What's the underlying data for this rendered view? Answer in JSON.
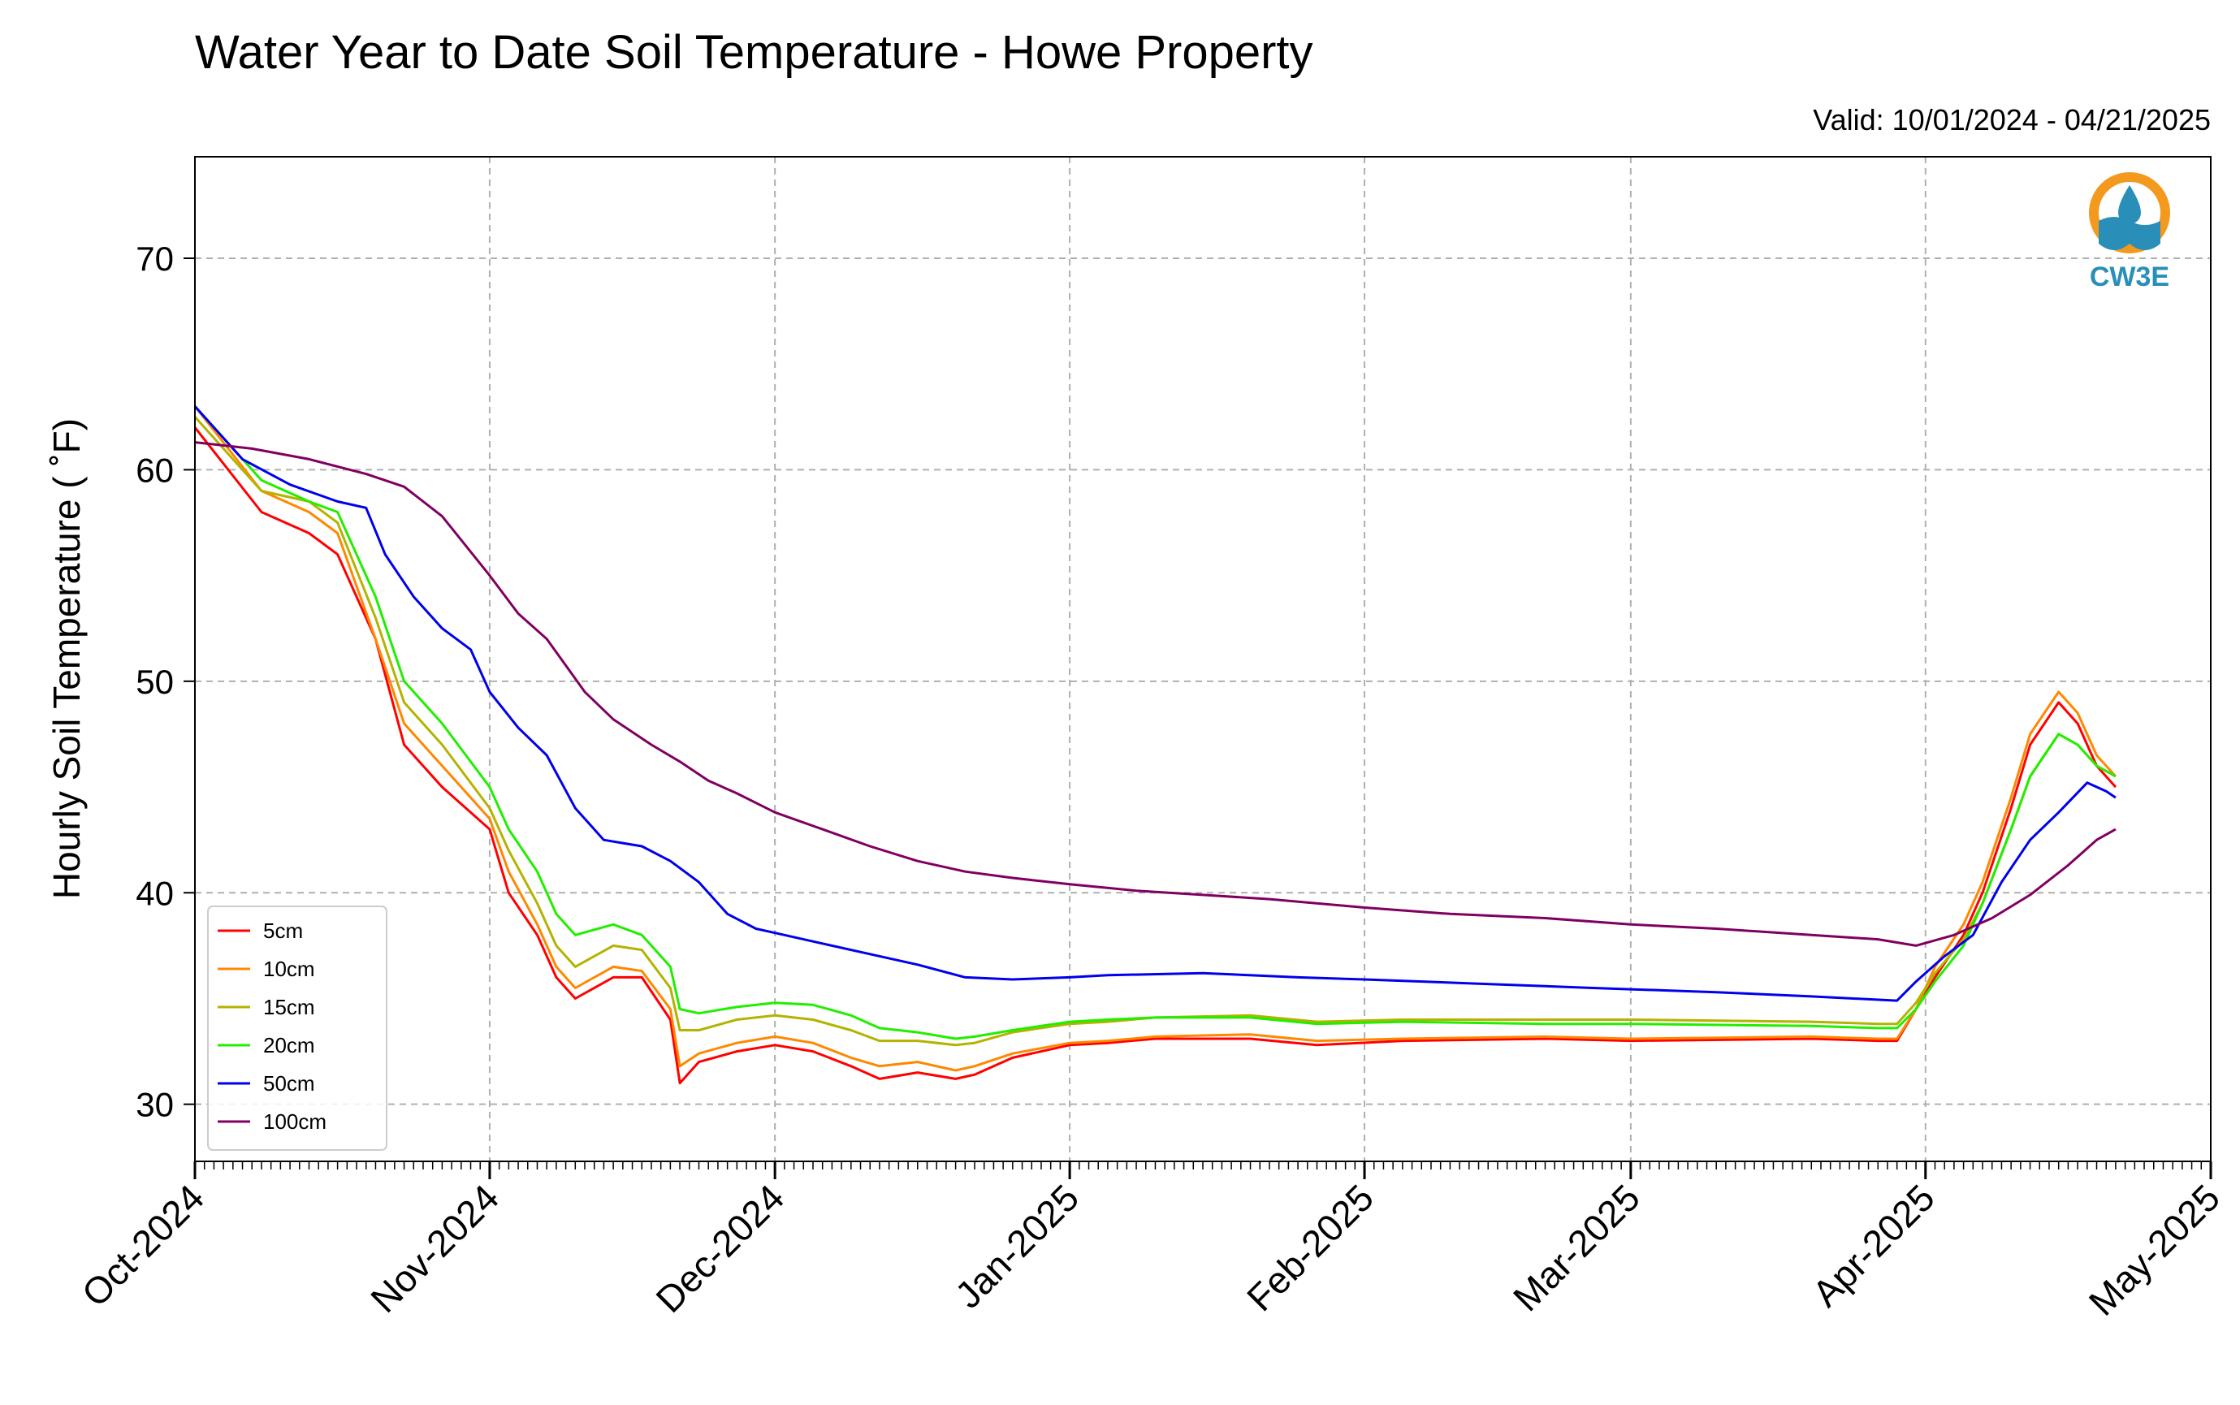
{
  "chart_data": {
    "type": "line",
    "title": "Water Year to Date Soil Temperature - Howe Property",
    "subtitle": "Valid: 10/01/2024 - 04/21/2025",
    "xlabel": "",
    "ylabel": "Hourly Soil Temperature ( ˚F)",
    "xlim": [
      "2024-10-01",
      "2025-05-01"
    ],
    "ylim": [
      27.3,
      74.8
    ],
    "yticks": [
      30,
      40,
      50,
      60,
      70
    ],
    "xticks": [
      {
        "date": "2024-10-01",
        "label": "Oct-2024"
      },
      {
        "date": "2024-11-01",
        "label": "Nov-2024"
      },
      {
        "date": "2024-12-01",
        "label": "Dec-2024"
      },
      {
        "date": "2025-01-01",
        "label": "Jan-2025"
      },
      {
        "date": "2025-02-01",
        "label": "Feb-2025"
      },
      {
        "date": "2025-03-01",
        "label": "Mar-2025"
      },
      {
        "date": "2025-04-01",
        "label": "Apr-2025"
      },
      {
        "date": "2025-05-01",
        "label": "May-2025"
      }
    ],
    "grid": true,
    "legend_position": "bottom-left",
    "series": [
      {
        "name": "5cm",
        "color": "#ff0000",
        "points": [
          [
            "2024-10-01",
            62
          ],
          [
            "2024-10-08",
            58
          ],
          [
            "2024-10-13",
            57
          ],
          [
            "2024-10-16",
            56
          ],
          [
            "2024-10-20",
            52
          ],
          [
            "2024-10-23",
            47
          ],
          [
            "2024-10-27",
            45
          ],
          [
            "2024-11-01",
            43
          ],
          [
            "2024-11-03",
            40
          ],
          [
            "2024-11-06",
            38
          ],
          [
            "2024-11-08",
            36
          ],
          [
            "2024-11-10",
            35
          ],
          [
            "2024-11-14",
            36
          ],
          [
            "2024-11-17",
            36
          ],
          [
            "2024-11-20",
            34
          ],
          [
            "2024-11-21",
            31
          ],
          [
            "2024-11-23",
            32
          ],
          [
            "2024-11-27",
            32.5
          ],
          [
            "2024-12-01",
            32.8
          ],
          [
            "2024-12-05",
            32.5
          ],
          [
            "2024-12-09",
            31.8
          ],
          [
            "2024-12-12",
            31.2
          ],
          [
            "2024-12-16",
            31.5
          ],
          [
            "2024-12-20",
            31.2
          ],
          [
            "2024-12-22",
            31.4
          ],
          [
            "2024-12-26",
            32.2
          ],
          [
            "2025-01-01",
            32.8
          ],
          [
            "2025-01-05",
            32.9
          ],
          [
            "2025-01-10",
            33.1
          ],
          [
            "2025-01-20",
            33.1
          ],
          [
            "2025-01-27",
            32.8
          ],
          [
            "2025-02-05",
            33
          ],
          [
            "2025-02-20",
            33.1
          ],
          [
            "2025-03-01",
            33
          ],
          [
            "2025-03-20",
            33.1
          ],
          [
            "2025-03-27",
            33
          ],
          [
            "2025-03-29",
            33
          ],
          [
            "2025-03-31",
            34.5
          ],
          [
            "2025-04-02",
            36
          ],
          [
            "2025-04-05",
            38
          ],
          [
            "2025-04-07",
            40
          ],
          [
            "2025-04-10",
            44
          ],
          [
            "2025-04-12",
            47
          ],
          [
            "2025-04-15",
            49
          ],
          [
            "2025-04-17",
            48
          ],
          [
            "2025-04-19",
            46
          ],
          [
            "2025-04-21",
            45
          ]
        ]
      },
      {
        "name": "10cm",
        "color": "#ff8800",
        "points": [
          [
            "2024-10-01",
            63
          ],
          [
            "2024-10-08",
            59
          ],
          [
            "2024-10-13",
            58
          ],
          [
            "2024-10-16",
            57
          ],
          [
            "2024-10-20",
            52
          ],
          [
            "2024-10-23",
            48
          ],
          [
            "2024-10-27",
            46
          ],
          [
            "2024-11-01",
            43.5
          ],
          [
            "2024-11-03",
            41
          ],
          [
            "2024-11-06",
            38.5
          ],
          [
            "2024-11-08",
            36.5
          ],
          [
            "2024-11-10",
            35.5
          ],
          [
            "2024-11-14",
            36.5
          ],
          [
            "2024-11-17",
            36.3
          ],
          [
            "2024-11-20",
            34.5
          ],
          [
            "2024-11-21",
            31.8
          ],
          [
            "2024-11-23",
            32.4
          ],
          [
            "2024-11-27",
            32.9
          ],
          [
            "2024-12-01",
            33.2
          ],
          [
            "2024-12-05",
            32.9
          ],
          [
            "2024-12-09",
            32.2
          ],
          [
            "2024-12-12",
            31.8
          ],
          [
            "2024-12-16",
            32
          ],
          [
            "2024-12-20",
            31.6
          ],
          [
            "2024-12-22",
            31.8
          ],
          [
            "2024-12-26",
            32.4
          ],
          [
            "2025-01-01",
            32.9
          ],
          [
            "2025-01-05",
            33
          ],
          [
            "2025-01-10",
            33.2
          ],
          [
            "2025-01-20",
            33.3
          ],
          [
            "2025-01-27",
            33
          ],
          [
            "2025-02-05",
            33.1
          ],
          [
            "2025-02-20",
            33.2
          ],
          [
            "2025-03-01",
            33.1
          ],
          [
            "2025-03-20",
            33.2
          ],
          [
            "2025-03-27",
            33.1
          ],
          [
            "2025-03-29",
            33.1
          ],
          [
            "2025-03-31",
            34.5
          ],
          [
            "2025-04-02",
            36.5
          ],
          [
            "2025-04-05",
            38.5
          ],
          [
            "2025-04-07",
            40.5
          ],
          [
            "2025-04-10",
            44.5
          ],
          [
            "2025-04-12",
            47.5
          ],
          [
            "2025-04-15",
            49.5
          ],
          [
            "2025-04-17",
            48.5
          ],
          [
            "2025-04-19",
            46.5
          ],
          [
            "2025-04-21",
            45.5
          ]
        ]
      },
      {
        "name": "15cm",
        "color": "#b3b300",
        "points": [
          [
            "2024-10-01",
            62.5
          ],
          [
            "2024-10-08",
            59
          ],
          [
            "2024-10-13",
            58.5
          ],
          [
            "2024-10-16",
            57.5
          ],
          [
            "2024-10-20",
            53
          ],
          [
            "2024-10-23",
            49
          ],
          [
            "2024-10-27",
            47
          ],
          [
            "2024-11-01",
            44
          ],
          [
            "2024-11-03",
            42
          ],
          [
            "2024-11-06",
            39.5
          ],
          [
            "2024-11-08",
            37.5
          ],
          [
            "2024-11-10",
            36.5
          ],
          [
            "2024-11-14",
            37.5
          ],
          [
            "2024-11-17",
            37.3
          ],
          [
            "2024-11-20",
            35.5
          ],
          [
            "2024-11-21",
            33.5
          ],
          [
            "2024-11-23",
            33.5
          ],
          [
            "2024-11-27",
            34
          ],
          [
            "2024-12-01",
            34.2
          ],
          [
            "2024-12-05",
            34
          ],
          [
            "2024-12-09",
            33.5
          ],
          [
            "2024-12-12",
            33
          ],
          [
            "2024-12-16",
            33
          ],
          [
            "2024-12-20",
            32.8
          ],
          [
            "2024-12-22",
            32.9
          ],
          [
            "2024-12-26",
            33.4
          ],
          [
            "2025-01-01",
            33.8
          ],
          [
            "2025-01-05",
            33.9
          ],
          [
            "2025-01-10",
            34.1
          ],
          [
            "2025-01-20",
            34.2
          ],
          [
            "2025-01-27",
            33.9
          ],
          [
            "2025-02-05",
            34
          ],
          [
            "2025-02-20",
            34
          ],
          [
            "2025-03-01",
            34
          ],
          [
            "2025-03-20",
            33.9
          ],
          [
            "2025-03-27",
            33.8
          ],
          [
            "2025-03-29",
            33.8
          ],
          [
            "2025-03-31",
            34.8
          ],
          [
            "2025-04-02",
            36.2
          ],
          [
            "2025-04-05",
            37.8
          ],
          [
            "2025-04-07",
            39.5
          ],
          [
            "2025-04-10",
            43
          ],
          [
            "2025-04-12",
            45.5
          ],
          [
            "2025-04-15",
            47.5
          ],
          [
            "2025-04-17",
            47
          ],
          [
            "2025-04-19",
            46
          ],
          [
            "2025-04-21",
            45.5
          ]
        ]
      },
      {
        "name": "20cm",
        "color": "#22ee00",
        "points": [
          [
            "2024-10-01",
            63
          ],
          [
            "2024-10-08",
            59.5
          ],
          [
            "2024-10-13",
            58.5
          ],
          [
            "2024-10-16",
            58
          ],
          [
            "2024-10-20",
            54
          ],
          [
            "2024-10-23",
            50
          ],
          [
            "2024-10-27",
            48
          ],
          [
            "2024-11-01",
            45
          ],
          [
            "2024-11-03",
            43
          ],
          [
            "2024-11-06",
            41
          ],
          [
            "2024-11-08",
            39
          ],
          [
            "2024-11-10",
            38
          ],
          [
            "2024-11-14",
            38.5
          ],
          [
            "2024-11-17",
            38
          ],
          [
            "2024-11-20",
            36.5
          ],
          [
            "2024-11-21",
            34.5
          ],
          [
            "2024-11-23",
            34.3
          ],
          [
            "2024-11-27",
            34.6
          ],
          [
            "2024-12-01",
            34.8
          ],
          [
            "2024-12-05",
            34.7
          ],
          [
            "2024-12-09",
            34.2
          ],
          [
            "2024-12-12",
            33.6
          ],
          [
            "2024-12-16",
            33.4
          ],
          [
            "2024-12-20",
            33.1
          ],
          [
            "2024-12-22",
            33.2
          ],
          [
            "2024-12-26",
            33.5
          ],
          [
            "2025-01-01",
            33.9
          ],
          [
            "2025-01-05",
            34
          ],
          [
            "2025-01-10",
            34.1
          ],
          [
            "2025-01-20",
            34.1
          ],
          [
            "2025-01-27",
            33.8
          ],
          [
            "2025-02-05",
            33.9
          ],
          [
            "2025-02-20",
            33.8
          ],
          [
            "2025-03-01",
            33.8
          ],
          [
            "2025-03-20",
            33.7
          ],
          [
            "2025-03-27",
            33.6
          ],
          [
            "2025-03-29",
            33.6
          ],
          [
            "2025-03-31",
            34.5
          ],
          [
            "2025-04-02",
            35.8
          ],
          [
            "2025-04-05",
            37.5
          ],
          [
            "2025-04-07",
            39.5
          ],
          [
            "2025-04-10",
            43
          ],
          [
            "2025-04-12",
            45.5
          ],
          [
            "2025-04-15",
            47.5
          ],
          [
            "2025-04-17",
            47
          ],
          [
            "2025-04-19",
            46
          ],
          [
            "2025-04-21",
            45.5
          ]
        ]
      },
      {
        "name": "50cm",
        "color": "#0000ee",
        "points": [
          [
            "2024-10-01",
            63
          ],
          [
            "2024-10-06",
            60.5
          ],
          [
            "2024-10-11",
            59.3
          ],
          [
            "2024-10-16",
            58.5
          ],
          [
            "2024-10-19",
            58.2
          ],
          [
            "2024-10-21",
            56
          ],
          [
            "2024-10-24",
            54
          ],
          [
            "2024-10-27",
            52.5
          ],
          [
            "2024-10-30",
            51.5
          ],
          [
            "2024-11-01",
            49.5
          ],
          [
            "2024-11-04",
            47.8
          ],
          [
            "2024-11-07",
            46.5
          ],
          [
            "2024-11-10",
            44
          ],
          [
            "2024-11-13",
            42.5
          ],
          [
            "2024-11-17",
            42.2
          ],
          [
            "2024-11-20",
            41.5
          ],
          [
            "2024-11-23",
            40.5
          ],
          [
            "2024-11-26",
            39
          ],
          [
            "2024-11-29",
            38.3
          ],
          [
            "2024-12-01",
            38.1
          ],
          [
            "2024-12-06",
            37.6
          ],
          [
            "2024-12-11",
            37.1
          ],
          [
            "2024-12-16",
            36.6
          ],
          [
            "2024-12-21",
            36
          ],
          [
            "2024-12-26",
            35.9
          ],
          [
            "2025-01-01",
            36
          ],
          [
            "2025-01-05",
            36.1
          ],
          [
            "2025-01-15",
            36.2
          ],
          [
            "2025-01-25",
            36
          ],
          [
            "2025-02-01",
            35.9
          ],
          [
            "2025-02-13",
            35.7
          ],
          [
            "2025-02-25",
            35.5
          ],
          [
            "2025-03-10",
            35.3
          ],
          [
            "2025-03-20",
            35.1
          ],
          [
            "2025-03-29",
            34.9
          ],
          [
            "2025-03-31",
            35.8
          ],
          [
            "2025-04-03",
            37
          ],
          [
            "2025-04-06",
            38
          ],
          [
            "2025-04-09",
            40.5
          ],
          [
            "2025-04-12",
            42.5
          ],
          [
            "2025-04-15",
            43.8
          ],
          [
            "2025-04-18",
            45.2
          ],
          [
            "2025-04-20",
            44.8
          ],
          [
            "2025-04-21",
            44.5
          ]
        ]
      },
      {
        "name": "100cm",
        "color": "#800060",
        "points": [
          [
            "2024-10-01",
            61.3
          ],
          [
            "2024-10-07",
            61
          ],
          [
            "2024-10-13",
            60.5
          ],
          [
            "2024-10-19",
            59.8
          ],
          [
            "2024-10-23",
            59.2
          ],
          [
            "2024-10-27",
            57.8
          ],
          [
            "2024-11-01",
            55
          ],
          [
            "2024-11-04",
            53.2
          ],
          [
            "2024-11-07",
            52
          ],
          [
            "2024-11-11",
            49.5
          ],
          [
            "2024-11-14",
            48.2
          ],
          [
            "2024-11-18",
            47
          ],
          [
            "2024-11-21",
            46.2
          ],
          [
            "2024-11-24",
            45.3
          ],
          [
            "2024-11-27",
            44.7
          ],
          [
            "2024-12-01",
            43.8
          ],
          [
            "2024-12-06",
            43
          ],
          [
            "2024-12-11",
            42.2
          ],
          [
            "2024-12-16",
            41.5
          ],
          [
            "2024-12-21",
            41
          ],
          [
            "2024-12-26",
            40.7
          ],
          [
            "2025-01-01",
            40.4
          ],
          [
            "2025-01-08",
            40.1
          ],
          [
            "2025-01-15",
            39.9
          ],
          [
            "2025-01-22",
            39.7
          ],
          [
            "2025-02-01",
            39.3
          ],
          [
            "2025-02-10",
            39
          ],
          [
            "2025-02-20",
            38.8
          ],
          [
            "2025-03-01",
            38.5
          ],
          [
            "2025-03-10",
            38.3
          ],
          [
            "2025-03-20",
            38
          ],
          [
            "2025-03-27",
            37.8
          ],
          [
            "2025-03-31",
            37.5
          ],
          [
            "2025-04-04",
            38
          ],
          [
            "2025-04-08",
            38.8
          ],
          [
            "2025-04-12",
            39.9
          ],
          [
            "2025-04-16",
            41.3
          ],
          [
            "2025-04-19",
            42.5
          ],
          [
            "2025-04-21",
            43
          ]
        ]
      }
    ]
  },
  "logo": {
    "text": "CW3E"
  }
}
